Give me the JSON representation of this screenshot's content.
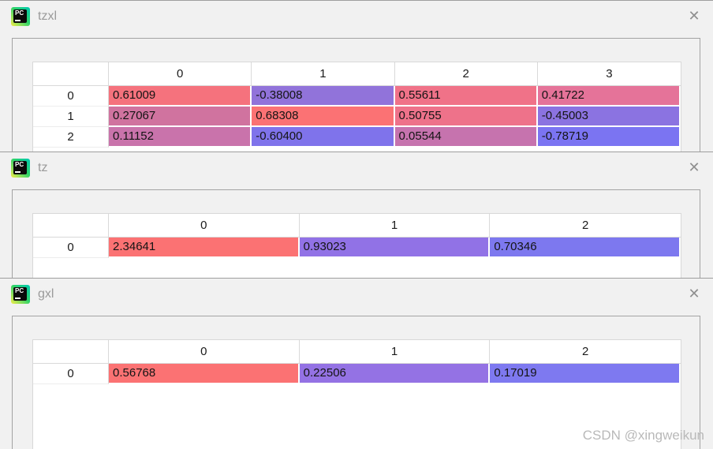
{
  "watermark": "CSDN @xingweikun",
  "ui": {
    "close_glyph": "✕",
    "icon_label": "PC",
    "accent_red_max": "#fb7273",
    "accent_blue_min": "#7b74f2",
    "title_text_color": "#9a9a9a"
  },
  "windows": [
    {
      "title": "tzxl",
      "table": {
        "col_headers": [
          "0",
          "1",
          "2",
          "3"
        ],
        "row_headers": [
          "0",
          "1",
          "2"
        ],
        "rows": [
          [
            {
              "v": "0.61009",
              "bg": "#f5727d"
            },
            {
              "v": "-0.38008",
              "bg": "#9173da"
            },
            {
              "v": "0.55611",
              "bg": "#f07288"
            },
            {
              "v": "0.41722",
              "bg": "#e57399"
            }
          ],
          [
            {
              "v": "0.27067",
              "bg": "#d0739f"
            },
            {
              "v": "0.68308",
              "bg": "#fb7274"
            },
            {
              "v": "0.50755",
              "bg": "#ee728a"
            },
            {
              "v": "-0.45003",
              "bg": "#8b73e1"
            }
          ],
          [
            {
              "v": "0.11152",
              "bg": "#c973ab"
            },
            {
              "v": "-0.60400",
              "bg": "#7f73eb"
            },
            {
              "v": "0.05544",
              "bg": "#c673ae"
            },
            {
              "v": "-0.78719",
              "bg": "#7b74f2"
            }
          ]
        ]
      }
    },
    {
      "title": "tz",
      "table": {
        "col_headers": [
          "0",
          "1",
          "2"
        ],
        "row_headers": [
          "0"
        ],
        "rows": [
          [
            {
              "v": "2.34641",
              "bg": "#fb7273"
            },
            {
              "v": "0.93023",
              "bg": "#9172e6"
            },
            {
              "v": "0.70346",
              "bg": "#7d78ef"
            }
          ]
        ]
      }
    },
    {
      "title": "gxl",
      "table": {
        "col_headers": [
          "0",
          "1",
          "2"
        ],
        "row_headers": [
          "0"
        ],
        "rows": [
          [
            {
              "v": "0.56768",
              "bg": "#fb7273"
            },
            {
              "v": "0.22506",
              "bg": "#9472e4"
            },
            {
              "v": "0.17019",
              "bg": "#7e79f0"
            }
          ]
        ]
      }
    }
  ]
}
